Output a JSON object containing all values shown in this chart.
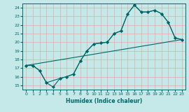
{
  "xlabel": "Humidex (Indice chaleur)",
  "xlim": [
    -0.5,
    23.5
  ],
  "ylim": [
    14.5,
    24.5
  ],
  "xticks": [
    0,
    1,
    2,
    3,
    4,
    5,
    6,
    7,
    8,
    9,
    10,
    11,
    12,
    13,
    14,
    15,
    16,
    17,
    18,
    19,
    20,
    21,
    22,
    23
  ],
  "yticks": [
    15,
    16,
    17,
    18,
    19,
    20,
    21,
    22,
    23,
    24
  ],
  "bg_color": "#c5e8e8",
  "grid_color": "#e8a8a8",
  "line_color": "#006868",
  "line1_x": [
    0,
    1,
    2,
    3,
    4,
    5,
    6,
    7,
    8,
    9,
    10,
    11,
    12,
    13,
    14,
    15,
    16,
    17,
    18,
    19,
    20,
    21,
    22,
    23
  ],
  "line1_y": [
    17.3,
    17.3,
    16.7,
    15.3,
    14.8,
    15.8,
    16.0,
    16.3,
    17.8,
    19.0,
    19.8,
    19.9,
    20.0,
    21.0,
    21.3,
    23.3,
    24.3,
    23.5,
    23.5,
    23.7,
    23.3,
    22.3,
    20.5,
    20.3
  ],
  "line2_x": [
    0,
    1,
    2,
    3,
    5,
    6,
    7,
    8,
    9,
    10,
    11,
    12,
    13,
    14,
    15,
    16,
    17,
    18,
    19,
    20,
    21,
    22,
    23
  ],
  "line2_y": [
    17.3,
    17.3,
    16.7,
    15.3,
    15.8,
    16.0,
    16.3,
    17.8,
    19.0,
    19.8,
    19.9,
    20.0,
    21.0,
    21.3,
    23.3,
    24.3,
    23.5,
    23.5,
    23.7,
    23.3,
    22.3,
    20.5,
    20.3
  ],
  "line3_x": [
    0,
    23
  ],
  "line3_y": [
    17.3,
    20.3
  ]
}
